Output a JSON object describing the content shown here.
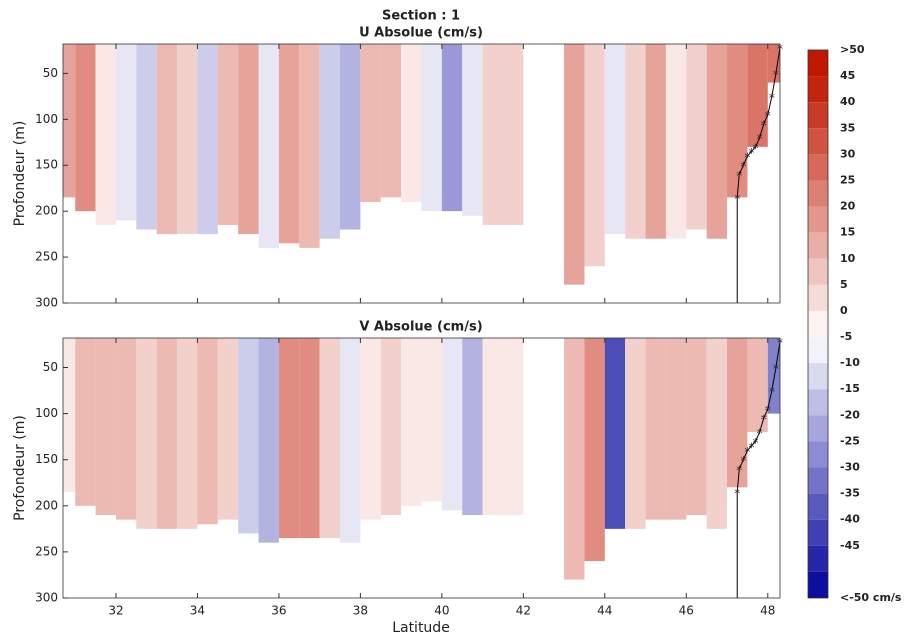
{
  "title": "Section : 1",
  "x_label": "Latitude",
  "colorbar": {
    "lim": [
      -50,
      55
    ],
    "colors": [
      "#00009a",
      "#ffffff",
      "#c01800"
    ],
    "ticks": [
      {
        "value": 50,
        "label": ">50"
      },
      45,
      40,
      35,
      30,
      25,
      20,
      15,
      10,
      5,
      0,
      -5,
      -10,
      -15,
      -20,
      -25,
      -30,
      -35,
      -40,
      -45,
      {
        "value": -50,
        "label": "<-50 cm/s"
      }
    ]
  },
  "chart_data": [
    {
      "type": "heatmap",
      "subtitle": "U Absolue (cm/s)",
      "y_label": "Profondeur (m)",
      "x": [
        30.75,
        31.25,
        31.75,
        32.25,
        32.75,
        33.25,
        33.75,
        34.25,
        34.75,
        35.25,
        35.75,
        36.25,
        36.75,
        37.25,
        37.75,
        38.25,
        38.75,
        39.25,
        39.75,
        40.25,
        40.75,
        41.25,
        41.75,
        42.25,
        42.75,
        43.25,
        43.75,
        44.25,
        44.75,
        45.25,
        45.75,
        46.25,
        46.75,
        47.25,
        47.75,
        48.25
      ],
      "values": [
        20,
        25,
        5,
        -5,
        -10,
        15,
        10,
        -10,
        15,
        20,
        -5,
        20,
        15,
        -10,
        -15,
        15,
        15,
        5,
        -5,
        -20,
        -5,
        10,
        10,
        null,
        null,
        20,
        10,
        -5,
        10,
        20,
        5,
        10,
        20,
        25,
        30,
        30
      ],
      "bottom": [
        185,
        200,
        215,
        210,
        220,
        225,
        225,
        225,
        215,
        225,
        240,
        235,
        240,
        230,
        220,
        190,
        185,
        190,
        200,
        200,
        205,
        215,
        215,
        null,
        null,
        280,
        260,
        225,
        230,
        230,
        230,
        220,
        230,
        185,
        130,
        60
      ],
      "stations": {
        "x": [
          47.25,
          47.25,
          47.3,
          47.4,
          47.5,
          47.6,
          47.7,
          47.8,
          47.9,
          48.0,
          48.1,
          48.2,
          48.3
        ],
        "y": [
          300,
          185,
          160,
          150,
          140,
          135,
          130,
          120,
          105,
          95,
          75,
          50,
          22
        ]
      },
      "xlim": [
        30.7,
        48.3
      ],
      "xticks": [
        32,
        34,
        36,
        38,
        40,
        42,
        44,
        46,
        48
      ],
      "ylim": [
        300,
        18
      ],
      "yticks": [
        50,
        100,
        150,
        200,
        250,
        300
      ]
    },
    {
      "type": "heatmap",
      "subtitle": "V Absolue (cm/s)",
      "y_label": "Profondeur (m)",
      "x": [
        30.75,
        31.25,
        31.75,
        32.25,
        32.75,
        33.25,
        33.75,
        34.25,
        34.75,
        35.25,
        35.75,
        36.25,
        36.75,
        37.25,
        37.75,
        38.25,
        38.75,
        39.25,
        39.75,
        40.25,
        40.75,
        41.25,
        41.75,
        42.25,
        42.75,
        43.25,
        43.75,
        44.25,
        44.75,
        45.25,
        45.75,
        46.25,
        46.75,
        47.25,
        47.75,
        48.25
      ],
      "values": [
        5,
        15,
        15,
        15,
        10,
        15,
        10,
        15,
        10,
        -10,
        -15,
        25,
        25,
        10,
        -5,
        5,
        10,
        5,
        5,
        -5,
        -15,
        5,
        5,
        null,
        null,
        15,
        25,
        -35,
        10,
        15,
        15,
        15,
        10,
        20,
        15,
        -25
      ],
      "bottom": [
        185,
        200,
        210,
        215,
        225,
        225,
        225,
        220,
        215,
        230,
        240,
        235,
        235,
        235,
        240,
        215,
        210,
        200,
        195,
        205,
        210,
        210,
        210,
        null,
        null,
        280,
        260,
        225,
        225,
        215,
        215,
        210,
        225,
        180,
        120,
        100
      ],
      "stations": {
        "x": [
          47.25,
          47.25,
          47.3,
          47.4,
          47.5,
          47.6,
          47.7,
          47.8,
          47.9,
          48.0,
          48.1,
          48.2,
          48.3
        ],
        "y": [
          300,
          185,
          160,
          150,
          140,
          135,
          130,
          120,
          105,
          95,
          75,
          50,
          22
        ]
      },
      "xlim": [
        30.7,
        48.3
      ],
      "xticks": [
        32,
        34,
        36,
        38,
        40,
        42,
        44,
        46,
        48
      ],
      "ylim": [
        300,
        18
      ],
      "yticks": [
        50,
        100,
        150,
        200,
        250,
        300
      ]
    }
  ]
}
